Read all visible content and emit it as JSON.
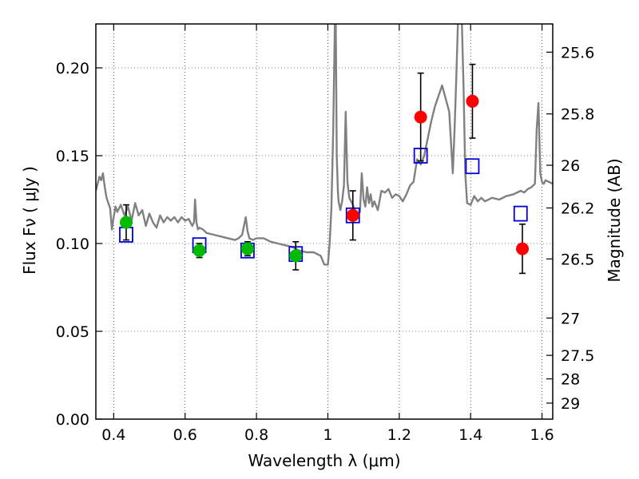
{
  "chart_data": {
    "type": "scatter",
    "xlabel": "Wavelength  λ (μm)",
    "ylabel": "Flux  Fν  ( μJy )",
    "y2label": "Magnitude (AB)",
    "xlim": [
      0.35,
      1.63
    ],
    "ylim": [
      0.0,
      0.225
    ],
    "grid": true,
    "x_ticks": [
      0.4,
      0.6,
      0.8,
      1.0,
      1.2,
      1.4,
      1.6
    ],
    "x_tick_labels": [
      "0.4",
      "0.6",
      "0.8",
      "1",
      "1.2",
      "1.4",
      "1.6"
    ],
    "y_ticks": [
      0.0,
      0.05,
      0.1,
      0.15,
      0.2
    ],
    "y_tick_labels": [
      "0.00",
      "0.05",
      "0.10",
      "0.15",
      "0.20"
    ],
    "mag_ticks": [
      25.6,
      25.8,
      26,
      26.2,
      26.5,
      27,
      27.5,
      28,
      29
    ],
    "mag_tick_labels": [
      "25.6",
      "25.8",
      "26",
      "26.2",
      "26.5",
      "27",
      "27.5",
      "28",
      "29"
    ],
    "series": [
      {
        "marker": "circle",
        "color": "#00bb00",
        "x": [
          0.435,
          0.64,
          0.775,
          0.91
        ],
        "y": [
          0.112,
          0.096,
          0.097,
          0.093
        ],
        "yerr": [
          0.01,
          0.004,
          0.004,
          0.008
        ]
      },
      {
        "marker": "circle",
        "color": "#ff0000",
        "x": [
          1.07,
          1.26,
          1.405,
          1.545
        ],
        "y": [
          0.116,
          0.172,
          0.181,
          0.097
        ],
        "yerr": [
          0.014,
          0.025,
          0.021,
          0.014
        ]
      },
      {
        "marker": "open-square",
        "color": "#0000dd",
        "x": [
          0.435,
          0.64,
          0.775,
          0.91,
          1.07,
          1.26,
          1.405,
          1.54
        ],
        "y": [
          0.105,
          0.099,
          0.096,
          0.094,
          0.116,
          0.15,
          0.144,
          0.117
        ]
      },
      {
        "marker": "line",
        "color": "#808080",
        "x": [
          0.35,
          0.36,
          0.365,
          0.37,
          0.375,
          0.38,
          0.39,
          0.395,
          0.4,
          0.405,
          0.41,
          0.42,
          0.43,
          0.44,
          0.45,
          0.46,
          0.47,
          0.48,
          0.49,
          0.5,
          0.51,
          0.52,
          0.53,
          0.54,
          0.55,
          0.56,
          0.57,
          0.58,
          0.59,
          0.6,
          0.61,
          0.62,
          0.625,
          0.628,
          0.632,
          0.636,
          0.64,
          0.65,
          0.66,
          0.68,
          0.7,
          0.72,
          0.74,
          0.75,
          0.76,
          0.77,
          0.775,
          0.78,
          0.79,
          0.8,
          0.82,
          0.84,
          0.86,
          0.88,
          0.9,
          0.92,
          0.94,
          0.96,
          0.98,
          0.99,
          1.0,
          1.005,
          1.01,
          1.015,
          1.02,
          1.022,
          1.025,
          1.028,
          1.03,
          1.035,
          1.04,
          1.045,
          1.05,
          1.055,
          1.06,
          1.07,
          1.08,
          1.09,
          1.095,
          1.1,
          1.105,
          1.11,
          1.115,
          1.12,
          1.125,
          1.13,
          1.14,
          1.15,
          1.16,
          1.17,
          1.18,
          1.19,
          1.2,
          1.21,
          1.22,
          1.23,
          1.24,
          1.25,
          1.26,
          1.27,
          1.28,
          1.29,
          1.3,
          1.32,
          1.34,
          1.35,
          1.355,
          1.36,
          1.365,
          1.37,
          1.375,
          1.38,
          1.385,
          1.39,
          1.4,
          1.41,
          1.42,
          1.43,
          1.44,
          1.46,
          1.48,
          1.5,
          1.52,
          1.54,
          1.55,
          1.56,
          1.57,
          1.58,
          1.585,
          1.59,
          1.595,
          1.6,
          1.605,
          1.61,
          1.62,
          1.63
        ],
        "y": [
          0.13,
          0.138,
          0.136,
          0.14,
          0.132,
          0.126,
          0.12,
          0.108,
          0.115,
          0.121,
          0.118,
          0.122,
          0.116,
          0.121,
          0.113,
          0.123,
          0.116,
          0.119,
          0.11,
          0.117,
          0.112,
          0.109,
          0.116,
          0.112,
          0.115,
          0.113,
          0.115,
          0.112,
          0.115,
          0.113,
          0.114,
          0.11,
          0.112,
          0.125,
          0.112,
          0.108,
          0.109,
          0.108,
          0.106,
          0.105,
          0.104,
          0.103,
          0.102,
          0.103,
          0.105,
          0.115,
          0.107,
          0.103,
          0.102,
          0.103,
          0.103,
          0.101,
          0.1,
          0.099,
          0.098,
          0.096,
          0.095,
          0.095,
          0.093,
          0.088,
          0.088,
          0.1,
          0.12,
          0.165,
          0.23,
          0.23,
          0.15,
          0.13,
          0.124,
          0.119,
          0.124,
          0.133,
          0.175,
          0.135,
          0.126,
          0.122,
          0.116,
          0.118,
          0.14,
          0.125,
          0.121,
          0.132,
          0.123,
          0.128,
          0.121,
          0.124,
          0.119,
          0.13,
          0.129,
          0.131,
          0.126,
          0.128,
          0.127,
          0.124,
          0.128,
          0.133,
          0.135,
          0.148,
          0.145,
          0.15,
          0.16,
          0.17,
          0.178,
          0.19,
          0.175,
          0.14,
          0.165,
          0.195,
          0.23,
          0.23,
          0.23,
          0.19,
          0.14,
          0.123,
          0.122,
          0.127,
          0.124,
          0.126,
          0.124,
          0.126,
          0.125,
          0.127,
          0.128,
          0.13,
          0.129,
          0.131,
          0.132,
          0.134,
          0.165,
          0.18,
          0.14,
          0.135,
          0.134,
          0.136,
          0.135,
          0.134
        ]
      }
    ]
  }
}
